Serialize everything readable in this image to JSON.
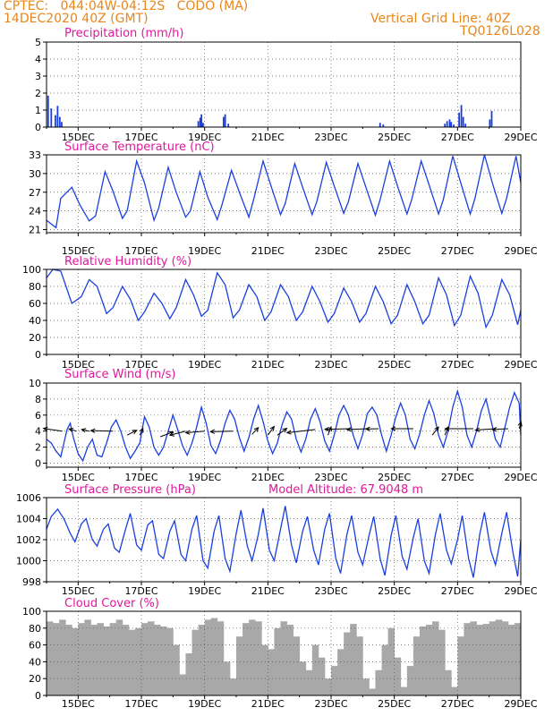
{
  "header": {
    "line1": "CPTEC:   044:04W-04:12S   CODO (MA)",
    "line2": "14DEC2020 40Z (GMT)",
    "right1": "Vertical Grid Line: 40Z",
    "right2": "TQ0126L028"
  },
  "colors": {
    "header": "#e8861a",
    "title": "#e0189a",
    "line": "#1a3fe0",
    "cloud": "#a8a8a8",
    "grid": "#555555"
  },
  "x_axis": {
    "range": [
      14.0,
      29.0
    ],
    "ticks": [
      15,
      17,
      19,
      21,
      23,
      25,
      27,
      29
    ],
    "tick_labels": [
      "15DEC",
      "17DEC",
      "19DEC",
      "21DEC",
      "23DEC",
      "25DEC",
      "27DEC",
      "29DEC"
    ]
  },
  "chart_data": [
    {
      "type": "bar",
      "title": "Precipitation (mm/h)",
      "ylim": [
        0,
        5
      ],
      "yticks": [
        0,
        1,
        2,
        3,
        4,
        5
      ],
      "x": [
        14.05,
        14.15,
        14.28,
        14.35,
        14.42,
        14.48,
        18.8,
        18.86,
        18.9,
        18.95,
        19.6,
        19.65,
        19.75,
        24.55,
        24.65,
        26.6,
        26.67,
        26.75,
        26.8,
        26.88,
        27.05,
        27.12,
        27.18,
        27.25,
        28.02,
        28.08
      ],
      "values": [
        1.85,
        1.1,
        0.7,
        1.25,
        0.6,
        0.3,
        0.35,
        0.55,
        0.75,
        0.25,
        0.6,
        0.75,
        0.2,
        0.25,
        0.15,
        0.2,
        0.35,
        0.45,
        0.3,
        0.15,
        0.85,
        1.3,
        0.6,
        0.2,
        0.45,
        0.95
      ]
    },
    {
      "type": "line",
      "title": "Surface Temperature (nC)",
      "ylim": [
        20.5,
        33
      ],
      "yticks": [
        21,
        24,
        27,
        30,
        33
      ],
      "x": [
        14.0,
        14.3,
        14.45,
        14.8,
        15.05,
        15.35,
        15.55,
        15.85,
        16.1,
        16.4,
        16.55,
        16.85,
        17.1,
        17.4,
        17.55,
        17.85,
        18.1,
        18.4,
        18.55,
        18.85,
        19.1,
        19.4,
        19.55,
        19.85,
        20.1,
        20.4,
        20.55,
        20.85,
        21.1,
        21.4,
        21.55,
        21.85,
        22.1,
        22.4,
        22.55,
        22.85,
        23.1,
        23.4,
        23.55,
        23.85,
        24.1,
        24.4,
        24.55,
        24.85,
        25.1,
        25.4,
        25.55,
        25.85,
        26.1,
        26.4,
        26.55,
        26.85,
        27.1,
        27.4,
        27.55,
        27.85,
        28.1,
        28.4,
        28.55,
        28.85,
        29.0
      ],
      "values": [
        22.5,
        21.3,
        26.0,
        27.8,
        25.0,
        22.4,
        23.2,
        30.3,
        27.2,
        22.8,
        24.0,
        32.0,
        28.5,
        22.5,
        24.5,
        31.0,
        27.0,
        23.0,
        24.0,
        30.3,
        26.2,
        22.6,
        25.0,
        30.5,
        27.0,
        23.0,
        25.8,
        32.0,
        28.0,
        23.4,
        25.2,
        31.6,
        27.8,
        23.4,
        25.5,
        31.8,
        28.0,
        23.6,
        25.5,
        31.6,
        27.8,
        23.3,
        25.8,
        32.0,
        28.0,
        23.5,
        25.8,
        32.0,
        28.2,
        23.5,
        25.8,
        32.8,
        28.5,
        23.5,
        26.0,
        33.0,
        28.5,
        23.6,
        26.0,
        32.8,
        28.5
      ],
      "series": []
    },
    {
      "type": "line",
      "title": "Relative Humidity (%)",
      "ylim": [
        0,
        100
      ],
      "yticks": [
        0,
        20,
        40,
        60,
        80,
        100
      ],
      "x": [
        14.0,
        14.2,
        14.45,
        14.8,
        15.1,
        15.35,
        15.6,
        15.9,
        16.1,
        16.4,
        16.65,
        16.9,
        17.1,
        17.4,
        17.65,
        17.9,
        18.1,
        18.4,
        18.65,
        18.9,
        19.1,
        19.4,
        19.65,
        19.9,
        20.1,
        20.4,
        20.65,
        20.9,
        21.1,
        21.4,
        21.65,
        21.9,
        22.1,
        22.4,
        22.65,
        22.9,
        23.1,
        23.4,
        23.65,
        23.9,
        24.1,
        24.4,
        24.65,
        24.9,
        25.1,
        25.4,
        25.65,
        25.9,
        26.1,
        26.4,
        26.65,
        26.9,
        27.1,
        27.4,
        27.65,
        27.9,
        28.1,
        28.4,
        28.65,
        28.9,
        29.0
      ],
      "values": [
        90,
        100,
        98,
        60,
        68,
        88,
        80,
        48,
        55,
        80,
        65,
        40,
        50,
        72,
        60,
        42,
        55,
        88,
        70,
        45,
        52,
        96,
        82,
        43,
        52,
        82,
        68,
        40,
        50,
        82,
        68,
        40,
        50,
        80,
        62,
        38,
        48,
        78,
        62,
        38,
        48,
        80,
        62,
        36,
        46,
        82,
        62,
        36,
        46,
        90,
        70,
        34,
        46,
        92,
        72,
        32,
        46,
        88,
        70,
        35,
        52
      ],
      "series": []
    },
    {
      "type": "line",
      "title": "Surface Wind (m/s)",
      "ylim": [
        -0.5,
        10
      ],
      "yticks": [
        0,
        2,
        4,
        6,
        8,
        10
      ],
      "x": [
        14.0,
        14.15,
        14.3,
        14.45,
        14.55,
        14.65,
        14.75,
        14.85,
        15.0,
        15.15,
        15.3,
        15.45,
        15.6,
        15.75,
        15.9,
        16.05,
        16.2,
        16.35,
        16.5,
        16.65,
        16.8,
        16.95,
        17.1,
        17.25,
        17.4,
        17.55,
        17.7,
        17.85,
        18.0,
        18.15,
        18.3,
        18.45,
        18.6,
        18.75,
        18.9,
        19.05,
        19.2,
        19.35,
        19.5,
        19.65,
        19.8,
        19.95,
        20.1,
        20.25,
        20.4,
        20.55,
        20.7,
        20.85,
        21.0,
        21.15,
        21.3,
        21.45,
        21.6,
        21.75,
        21.9,
        22.05,
        22.2,
        22.35,
        22.5,
        22.65,
        22.8,
        22.95,
        23.1,
        23.25,
        23.4,
        23.55,
        23.7,
        23.85,
        24.0,
        24.15,
        24.3,
        24.45,
        24.6,
        24.75,
        24.9,
        25.05,
        25.2,
        25.35,
        25.5,
        25.65,
        25.8,
        25.95,
        26.1,
        26.25,
        26.4,
        26.55,
        26.7,
        26.85,
        27.0,
        27.15,
        27.3,
        27.45,
        27.6,
        27.75,
        27.9,
        28.05,
        28.2,
        28.35,
        28.5,
        28.65,
        28.8,
        28.95,
        29.0
      ],
      "values": [
        3.0,
        2.5,
        1.5,
        0.8,
        2.5,
        4.2,
        5.0,
        3.2,
        1.2,
        0.3,
        2.0,
        3.0,
        1.0,
        0.8,
        2.5,
        4.5,
        5.4,
        4.0,
        2.0,
        0.6,
        1.5,
        2.5,
        5.8,
        4.5,
        2.0,
        1.0,
        2.0,
        4.0,
        6.0,
        4.2,
        2.2,
        1.0,
        2.5,
        4.5,
        7.0,
        5.0,
        2.2,
        1.2,
        2.8,
        5.0,
        6.6,
        5.5,
        3.2,
        1.5,
        3.2,
        5.5,
        7.2,
        5.2,
        2.8,
        1.2,
        2.5,
        4.8,
        6.4,
        5.5,
        3.0,
        1.4,
        3.0,
        5.5,
        6.8,
        5.2,
        2.8,
        1.5,
        3.5,
        6.0,
        7.2,
        6.0,
        3.5,
        1.8,
        3.6,
        6.2,
        7.0,
        6.0,
        3.5,
        1.5,
        3.5,
        5.8,
        7.5,
        6.0,
        3.0,
        1.8,
        3.6,
        6.0,
        7.8,
        6.2,
        3.5,
        2.0,
        4.0,
        7.0,
        9.0,
        7.0,
        3.5,
        2.0,
        4.0,
        6.5,
        8.0,
        5.5,
        3.0,
        2.0,
        4.5,
        7.0,
        8.8,
        7.5,
        3.5
      ],
      "vectors": [
        {
          "x": 14.5,
          "y": 4.0,
          "u": -3.0,
          "v": 1.0
        },
        {
          "x": 14.95,
          "y": 4.0,
          "u": -1.2,
          "v": 0.8
        },
        {
          "x": 15.35,
          "y": 4.0,
          "u": -1.2,
          "v": 0.6
        },
        {
          "x": 16.1,
          "y": 4.0,
          "u": -3.5,
          "v": 0.2
        },
        {
          "x": 16.55,
          "y": 3.5,
          "u": 1.5,
          "v": 1.8
        },
        {
          "x": 16.95,
          "y": 3.5,
          "u": 0.5,
          "v": 2.5
        },
        {
          "x": 17.6,
          "y": 3.3,
          "u": 2.0,
          "v": 1.8
        },
        {
          "x": 18.4,
          "y": 4.0,
          "u": -2.5,
          "v": -1.5
        },
        {
          "x": 19.0,
          "y": 4.0,
          "u": -3.0,
          "v": -0.6
        },
        {
          "x": 19.9,
          "y": 4.0,
          "u": -3.6,
          "v": -0.2
        },
        {
          "x": 20.5,
          "y": 3.6,
          "u": 1.0,
          "v": 2.5
        },
        {
          "x": 21.0,
          "y": 3.5,
          "u": 1.0,
          "v": 3.2
        },
        {
          "x": 21.3,
          "y": 3.5,
          "u": 1.5,
          "v": 2.5
        },
        {
          "x": 22.5,
          "y": 4.2,
          "u": -4.5,
          "v": -1.2
        },
        {
          "x": 22.9,
          "y": 3.5,
          "u": 0.5,
          "v": 3.0
        },
        {
          "x": 23.6,
          "y": 4.3,
          "u": -4.0,
          "v": -0.2
        },
        {
          "x": 24.2,
          "y": 4.3,
          "u": -3.5,
          "v": -0.3
        },
        {
          "x": 24.5,
          "y": 4.3,
          "u": -2.0,
          "v": -0.1
        },
        {
          "x": 25.6,
          "y": 4.3,
          "u": -3.5,
          "v": 0.0
        },
        {
          "x": 26.2,
          "y": 3.5,
          "u": 1.0,
          "v": 3.0
        },
        {
          "x": 26.6,
          "y": 3.5,
          "u": 0.5,
          "v": 3.0
        },
        {
          "x": 27.5,
          "y": 4.3,
          "u": -4.5,
          "v": 0.0
        },
        {
          "x": 28.2,
          "y": 4.3,
          "u": -3.2,
          "v": -0.5
        },
        {
          "x": 28.6,
          "y": 4.3,
          "u": -2.5,
          "v": -0.3
        },
        {
          "x": 28.95,
          "y": 4.3,
          "u": 0.3,
          "v": 2.5
        }
      ],
      "series": []
    },
    {
      "type": "line",
      "title": "Surface Pressure (hPa)",
      "ylim": [
        998,
        1006
      ],
      "yticks": [
        998,
        1000,
        1002,
        1004,
        1006
      ],
      "x": [
        14.0,
        14.15,
        14.35,
        14.55,
        14.75,
        14.9,
        15.1,
        15.25,
        15.45,
        15.6,
        15.8,
        15.95,
        16.15,
        16.3,
        16.5,
        16.65,
        16.85,
        17.0,
        17.2,
        17.35,
        17.55,
        17.7,
        17.9,
        18.05,
        18.25,
        18.4,
        18.6,
        18.75,
        18.95,
        19.1,
        19.3,
        19.45,
        19.65,
        19.8,
        20.0,
        20.15,
        20.35,
        20.5,
        20.7,
        20.85,
        21.05,
        21.2,
        21.4,
        21.55,
        21.75,
        21.9,
        22.1,
        22.25,
        22.45,
        22.6,
        22.8,
        22.95,
        23.15,
        23.3,
        23.5,
        23.65,
        23.85,
        24.0,
        24.2,
        24.35,
        24.55,
        24.7,
        24.9,
        25.05,
        25.25,
        25.4,
        25.6,
        25.75,
        25.95,
        26.1,
        26.3,
        26.45,
        26.65,
        26.8,
        27.0,
        27.15,
        27.35,
        27.5,
        27.7,
        27.85,
        28.05,
        28.2,
        28.4,
        28.55,
        28.75,
        28.9,
        29.0
      ],
      "values": [
        1003.0,
        1004.2,
        1004.9,
        1004.0,
        1002.6,
        1001.8,
        1003.5,
        1004.0,
        1002.0,
        1001.4,
        1003.0,
        1003.5,
        1001.2,
        1000.8,
        1003.0,
        1004.5,
        1001.5,
        1001.0,
        1003.4,
        1003.8,
        1000.6,
        1000.2,
        1002.8,
        1003.8,
        1000.6,
        1000.0,
        1003.0,
        1004.3,
        1000.0,
        999.3,
        1002.8,
        1004.3,
        1000.2,
        999.0,
        1002.6,
        1004.8,
        1001.4,
        1000.0,
        1002.5,
        1005.0,
        1001.0,
        1000.0,
        1003.0,
        1005.2,
        1001.5,
        999.8,
        1002.8,
        1004.2,
        1001.0,
        999.6,
        1003.0,
        1004.5,
        1000.2,
        998.8,
        1002.5,
        1004.3,
        1000.8,
        999.6,
        1002.4,
        1004.2,
        1000.2,
        998.6,
        1002.4,
        1004.3,
        1000.4,
        999.2,
        1002.2,
        1004.0,
        1000.0,
        998.8,
        1002.5,
        1004.5,
        1001.0,
        999.7,
        1002.0,
        1004.3,
        1000.2,
        998.4,
        1002.5,
        1004.6,
        1001.0,
        999.6,
        1002.6,
        1004.6,
        1000.8,
        998.5,
        1002.0
      ],
      "series": []
    },
    {
      "type": "bar",
      "title": "Cloud Cover (%)",
      "ylim": [
        0,
        100
      ],
      "yticks": [
        0,
        20,
        40,
        60,
        80,
        100
      ],
      "x": [
        14.0,
        14.2,
        14.4,
        14.6,
        14.8,
        15.0,
        15.2,
        15.4,
        15.6,
        15.8,
        16.0,
        16.2,
        16.4,
        16.6,
        16.8,
        17.0,
        17.2,
        17.4,
        17.6,
        17.8,
        18.0,
        18.2,
        18.4,
        18.6,
        18.8,
        19.0,
        19.2,
        19.4,
        19.6,
        19.8,
        20.0,
        20.2,
        20.4,
        20.6,
        20.8,
        21.0,
        21.2,
        21.4,
        21.6,
        21.8,
        22.0,
        22.2,
        22.4,
        22.6,
        22.8,
        23.0,
        23.2,
        23.4,
        23.6,
        23.8,
        24.0,
        24.2,
        24.4,
        24.6,
        24.8,
        25.0,
        25.2,
        25.4,
        25.6,
        25.8,
        26.0,
        26.2,
        26.4,
        26.6,
        26.8,
        27.0,
        27.2,
        27.4,
        27.6,
        27.8,
        28.0,
        28.2,
        28.4,
        28.6,
        28.8
      ],
      "values": [
        88,
        86,
        90,
        84,
        80,
        86,
        90,
        84,
        86,
        82,
        86,
        90,
        84,
        78,
        80,
        86,
        88,
        84,
        82,
        80,
        60,
        25,
        50,
        78,
        84,
        90,
        92,
        88,
        40,
        20,
        70,
        86,
        90,
        88,
        60,
        55,
        80,
        88,
        84,
        70,
        40,
        30,
        60,
        45,
        20,
        35,
        55,
        75,
        85,
        70,
        20,
        8,
        30,
        60,
        80,
        45,
        10,
        35,
        70,
        82,
        84,
        88,
        78,
        30,
        10,
        70,
        86,
        88,
        84,
        85,
        88,
        90,
        88,
        84,
        86
      ],
      "series": []
    }
  ],
  "panels": [
    {
      "title": "Precipitation (mm/h)"
    },
    {
      "title": "Surface Temperature (nC)"
    },
    {
      "title": "Relative Humidity (%)"
    },
    {
      "title": "Surface Wind (m/s)"
    },
    {
      "title": "Surface Pressure (hPa)",
      "extra": "Model Altitude: 67.9048 m"
    },
    {
      "title": "Cloud Cover (%)"
    }
  ]
}
